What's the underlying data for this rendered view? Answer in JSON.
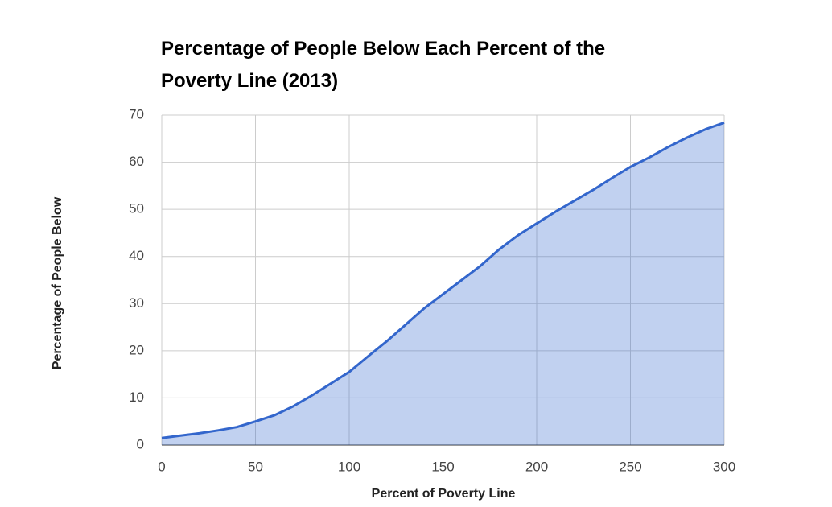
{
  "chart_data": {
    "type": "area",
    "title": [
      "Percentage of People Below Each Percent of the",
      "Poverty Line (2013)"
    ],
    "x_label": "Percent of Poverty Line",
    "y_label": "Percentage of People Below",
    "x": [
      0,
      10,
      20,
      30,
      40,
      50,
      60,
      70,
      80,
      90,
      100,
      110,
      120,
      130,
      140,
      150,
      160,
      170,
      180,
      190,
      200,
      210,
      220,
      230,
      240,
      250,
      260,
      270,
      280,
      290,
      300
    ],
    "series": [
      {
        "name": "Percentage of People Below",
        "color": "#3366cc",
        "values": [
          1.5,
          2,
          2.5,
          3.1,
          3.8,
          5,
          6.3,
          8.2,
          10.5,
          13,
          15.5,
          18.8,
          22,
          25.5,
          29,
          32,
          35,
          38,
          41.5,
          44.5,
          47,
          49.5,
          51.8,
          54.1,
          56.6,
          59,
          61,
          63.2,
          65.2,
          67,
          68.4
        ]
      }
    ],
    "xlim": [
      0,
      300
    ],
    "xticks": [
      0,
      50,
      100,
      150,
      200,
      250,
      300
    ],
    "ylim": [
      0,
      70
    ],
    "yticks": [
      0,
      10,
      20,
      30,
      40,
      50,
      60,
      70
    ],
    "grid": true
  }
}
